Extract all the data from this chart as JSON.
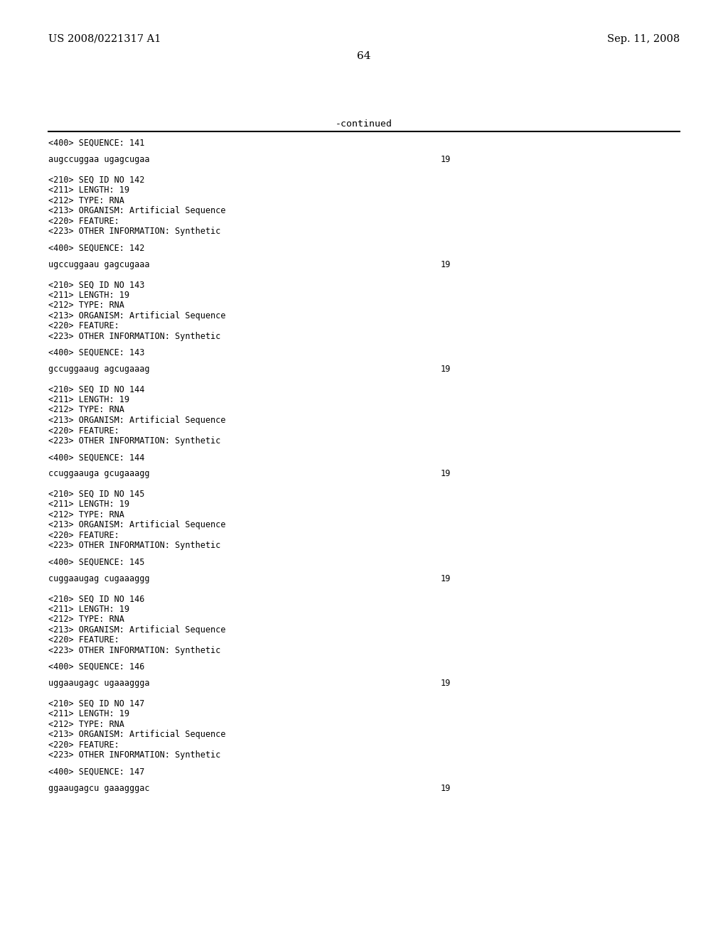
{
  "header_left": "US 2008/0221317 A1",
  "header_right": "Sep. 11, 2008",
  "page_number": "64",
  "continued_label": "-continued",
  "background_color": "#ffffff",
  "text_color": "#000000",
  "font_size_header": 10.5,
  "font_size_body": 8.5,
  "font_size_page": 11,
  "font_size_continued": 9.5,
  "sequences": [
    {
      "seq400_label": "<400> SEQUENCE: 141",
      "sequence": "augccuggaa ugagcugaa",
      "length_num": "19",
      "has_210": false
    },
    {
      "seq210_lines": [
        "<210> SEQ ID NO 142",
        "<211> LENGTH: 19",
        "<212> TYPE: RNA",
        "<213> ORGANISM: Artificial Sequence",
        "<220> FEATURE:",
        "<223> OTHER INFORMATION: Synthetic"
      ],
      "seq400_label": "<400> SEQUENCE: 142",
      "sequence": "ugccuggaau gagcugaaa",
      "length_num": "19",
      "has_210": true
    },
    {
      "seq210_lines": [
        "<210> SEQ ID NO 143",
        "<211> LENGTH: 19",
        "<212> TYPE: RNA",
        "<213> ORGANISM: Artificial Sequence",
        "<220> FEATURE:",
        "<223> OTHER INFORMATION: Synthetic"
      ],
      "seq400_label": "<400> SEQUENCE: 143",
      "sequence": "gccuggaaug agcugaaag",
      "length_num": "19",
      "has_210": true
    },
    {
      "seq210_lines": [
        "<210> SEQ ID NO 144",
        "<211> LENGTH: 19",
        "<212> TYPE: RNA",
        "<213> ORGANISM: Artificial Sequence",
        "<220> FEATURE:",
        "<223> OTHER INFORMATION: Synthetic"
      ],
      "seq400_label": "<400> SEQUENCE: 144",
      "sequence": "ccuggaauga gcugaaagg",
      "length_num": "19",
      "has_210": true
    },
    {
      "seq210_lines": [
        "<210> SEQ ID NO 145",
        "<211> LENGTH: 19",
        "<212> TYPE: RNA",
        "<213> ORGANISM: Artificial Sequence",
        "<220> FEATURE:",
        "<223> OTHER INFORMATION: Synthetic"
      ],
      "seq400_label": "<400> SEQUENCE: 145",
      "sequence": "cuggaaugag cugaaaggg",
      "length_num": "19",
      "has_210": true
    },
    {
      "seq210_lines": [
        "<210> SEQ ID NO 146",
        "<211> LENGTH: 19",
        "<212> TYPE: RNA",
        "<213> ORGANISM: Artificial Sequence",
        "<220> FEATURE:",
        "<223> OTHER INFORMATION: Synthetic"
      ],
      "seq400_label": "<400> SEQUENCE: 146",
      "sequence": "uggaaugagc ugaaaggga",
      "length_num": "19",
      "has_210": true
    },
    {
      "seq210_lines": [
        "<210> SEQ ID NO 147",
        "<211> LENGTH: 19",
        "<212> TYPE: RNA",
        "<213> ORGANISM: Artificial Sequence",
        "<220> FEATURE:",
        "<223> OTHER INFORMATION: Synthetic"
      ],
      "seq400_label": "<400> SEQUENCE: 147",
      "sequence": "ggaaugagcu gaaagggac",
      "length_num": "19",
      "has_210": true
    }
  ]
}
